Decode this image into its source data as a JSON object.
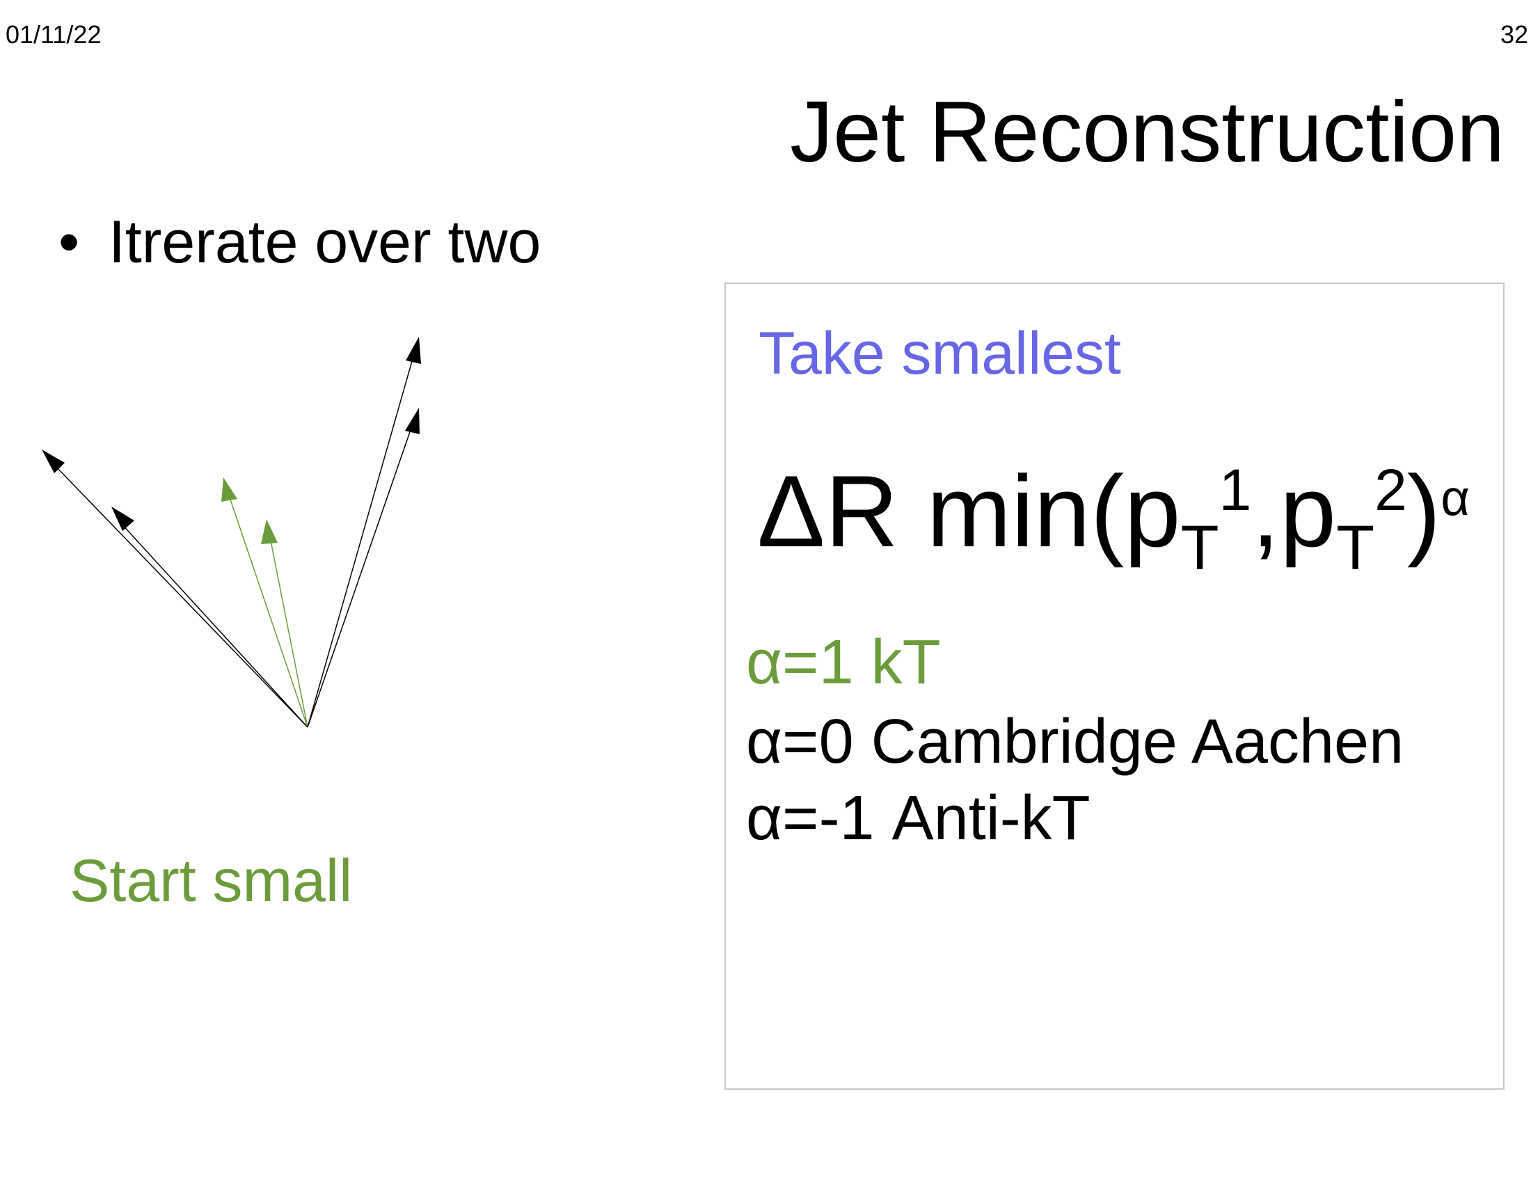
{
  "header": {
    "date": "01/11/22",
    "page_number": "32"
  },
  "slide": {
    "title": "Jet Reconstruction",
    "bullet_symbol": "•",
    "bullet": "Itrerate over two",
    "start_small": "Start small"
  },
  "box": {
    "take_smallest": "Take smallest",
    "formula": {
      "delta_r": "ΔR min(p",
      "sub1": "T",
      "sup1": "1",
      "mid": ",p",
      "sub2": "T",
      "sup2": "2",
      "close": ")",
      "exponent": "α"
    },
    "algorithms": [
      {
        "text": "α=1  kT"
      },
      {
        "text": "α=0 Cambridge Aachen"
      },
      {
        "text": "α=-1 Anti-kT"
      }
    ]
  },
  "colors": {
    "green": "#6b9c3c",
    "blue": "#6666e6",
    "black": "#000000",
    "box_border": "#c8c8c8"
  }
}
